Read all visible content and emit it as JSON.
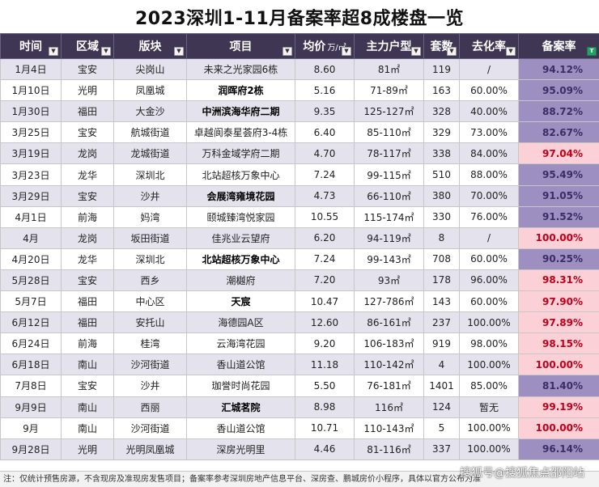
{
  "title": "2023深圳1-11月备案率超8成楼盘一览",
  "headers": {
    "time": "时间",
    "district": "区域",
    "block": "版块",
    "project": "项目",
    "price": "均价",
    "price_unit": "万/㎡",
    "unit_type": "主力户型",
    "units": "套数",
    "absorption": "去化率",
    "record_rate": "备案率"
  },
  "rows": [
    {
      "time": "1月4日",
      "district": "宝安",
      "block": "尖岗山",
      "project": "未来之光家园6栋",
      "price": "8.60",
      "unit_type": "81㎡",
      "units": "119",
      "absorption": "/",
      "record_rate": "94.12%"
    },
    {
      "time": "1月10日",
      "district": "光明",
      "block": "凤凰城",
      "project": "润晖府2栋",
      "price": "5.16",
      "unit_type": "71-89㎡",
      "units": "163",
      "absorption": "60.00%",
      "record_rate": "95.09%"
    },
    {
      "time": "1月30日",
      "district": "福田",
      "block": "大金沙",
      "project": "中洲滨海华府二期",
      "price": "9.35",
      "unit_type": "125-127㎡",
      "units": "328",
      "absorption": "40.00%",
      "record_rate": "88.72%"
    },
    {
      "time": "3月25日",
      "district": "宝安",
      "block": "航城街道",
      "project": "卓越阆泰星荟府3-4栋",
      "price": "6.40",
      "unit_type": "85-110㎡",
      "units": "329",
      "absorption": "73.00%",
      "record_rate": "82.67%"
    },
    {
      "time": "3月19日",
      "district": "龙岗",
      "block": "龙城街道",
      "project": "万科金域学府二期",
      "price": "4.70",
      "unit_type": "78-117㎡",
      "units": "338",
      "absorption": "84.00%",
      "record_rate": "97.04%"
    },
    {
      "time": "3月23日",
      "district": "龙华",
      "block": "深圳北",
      "project": "北站超核万象中心",
      "price": "7.24",
      "unit_type": "99-115㎡",
      "units": "510",
      "absorption": "88.00%",
      "record_rate": "95.49%"
    },
    {
      "time": "3月29日",
      "district": "宝安",
      "block": "沙井",
      "project": "会展湾雍境花园",
      "price": "4.73",
      "unit_type": "66-110㎡",
      "units": "380",
      "absorption": "70.00%",
      "record_rate": "91.05%"
    },
    {
      "time": "4月1日",
      "district": "前海",
      "block": "妈湾",
      "project": "颐城臻湾悦家园",
      "price": "10.55",
      "unit_type": "115-174㎡",
      "units": "330",
      "absorption": "76.00%",
      "record_rate": "91.52%"
    },
    {
      "time": "4月",
      "district": "龙岗",
      "block": "坂田街道",
      "project": "佳兆业云望府",
      "price": "6.20",
      "unit_type": "94-119㎡",
      "units": "8",
      "absorption": "/",
      "record_rate": "100.00%"
    },
    {
      "time": "4月20日",
      "district": "龙华",
      "block": "深圳北",
      "project": "北站超核万象中心",
      "price": "7.24",
      "unit_type": "99-143㎡",
      "units": "708",
      "absorption": "60.00%",
      "record_rate": "90.25%"
    },
    {
      "time": "5月28日",
      "district": "宝安",
      "block": "西乡",
      "project": "潮樾府",
      "price": "7.20",
      "unit_type": "93㎡",
      "units": "178",
      "absorption": "96.00%",
      "record_rate": "98.31%"
    },
    {
      "time": "5月7日",
      "district": "福田",
      "block": "中心区",
      "project": "天宸",
      "price": "10.47",
      "unit_type": "127-786㎡",
      "units": "143",
      "absorption": "60.00%",
      "record_rate": "97.90%"
    },
    {
      "time": "6月12日",
      "district": "福田",
      "block": "安托山",
      "project": "海德园A区",
      "price": "12.60",
      "unit_type": "86-161㎡",
      "units": "237",
      "absorption": "100.00%",
      "record_rate": "97.89%"
    },
    {
      "time": "6月24日",
      "district": "前海",
      "block": "桂湾",
      "project": "云海湾花园",
      "price": "9.20",
      "unit_type": "106-183㎡",
      "units": "919",
      "absorption": "98.00%",
      "record_rate": "98.15%"
    },
    {
      "time": "6月18日",
      "district": "南山",
      "block": "沙河街道",
      "project": "香山道公馆",
      "price": "11.18",
      "unit_type": "110-142㎡",
      "units": "4",
      "absorption": "100.00%",
      "record_rate": "100.00%"
    },
    {
      "time": "7月8日",
      "district": "宝安",
      "block": "沙井",
      "project": "珈誉时尚花园",
      "price": "5.50",
      "unit_type": "76-181㎡",
      "units": "1401",
      "absorption": "85.00%",
      "record_rate": "81.40%"
    },
    {
      "time": "9月9日",
      "district": "南山",
      "block": "西丽",
      "project": "汇城茗院",
      "price": "8.98",
      "unit_type": "116㎡",
      "units": "124",
      "absorption": "暂无",
      "record_rate": "99.19%"
    },
    {
      "time": "9月",
      "district": "南山",
      "block": "沙河街道",
      "project": "香山道公馆",
      "price": "10.71",
      "unit_type": "110-143㎡",
      "units": "5",
      "absorption": "100.00%",
      "record_rate": "100.00%"
    },
    {
      "time": "9月28日",
      "district": "光明",
      "block": "光明凤凰城",
      "project": "深房光明里",
      "price": "4.46",
      "unit_type": "81-116㎡",
      "units": "337",
      "absorption": "100.00%",
      "record_rate": "96.14%"
    }
  ],
  "row_styles": [
    {
      "project_bold": false,
      "rate_level": "low"
    },
    {
      "project_bold": true,
      "rate_level": "low"
    },
    {
      "project_bold": true,
      "rate_level": "low"
    },
    {
      "project_bold": false,
      "rate_level": "low"
    },
    {
      "project_bold": false,
      "rate_level": "high"
    },
    {
      "project_bold": false,
      "rate_level": "low"
    },
    {
      "project_bold": true,
      "rate_level": "low"
    },
    {
      "project_bold": false,
      "rate_level": "low"
    },
    {
      "project_bold": false,
      "rate_level": "high"
    },
    {
      "project_bold": true,
      "rate_level": "low"
    },
    {
      "project_bold": false,
      "rate_level": "high"
    },
    {
      "project_bold": true,
      "rate_level": "high"
    },
    {
      "project_bold": false,
      "rate_level": "high"
    },
    {
      "project_bold": false,
      "rate_level": "high"
    },
    {
      "project_bold": false,
      "rate_level": "high"
    },
    {
      "project_bold": false,
      "rate_level": "low"
    },
    {
      "project_bold": true,
      "rate_level": "high"
    },
    {
      "project_bold": false,
      "rate_level": "high"
    },
    {
      "project_bold": false,
      "rate_level": "low"
    }
  ],
  "footer": "注：仅统计预售房源，不含现房及准现房发售项目；备案率参考深圳房地产信息平台、深房查、鹏城房价小程序，具体以官方公布为准",
  "watermark": "搜狐号@搜狐焦点邵阳站",
  "colors": {
    "header_bg": "#3f3653",
    "alt_row_bg": "#e4e2ec",
    "rate_low_bg": "#9d8fc0",
    "rate_high_bg": "#fcd0d7",
    "rate_high_text": "#c0001a"
  }
}
